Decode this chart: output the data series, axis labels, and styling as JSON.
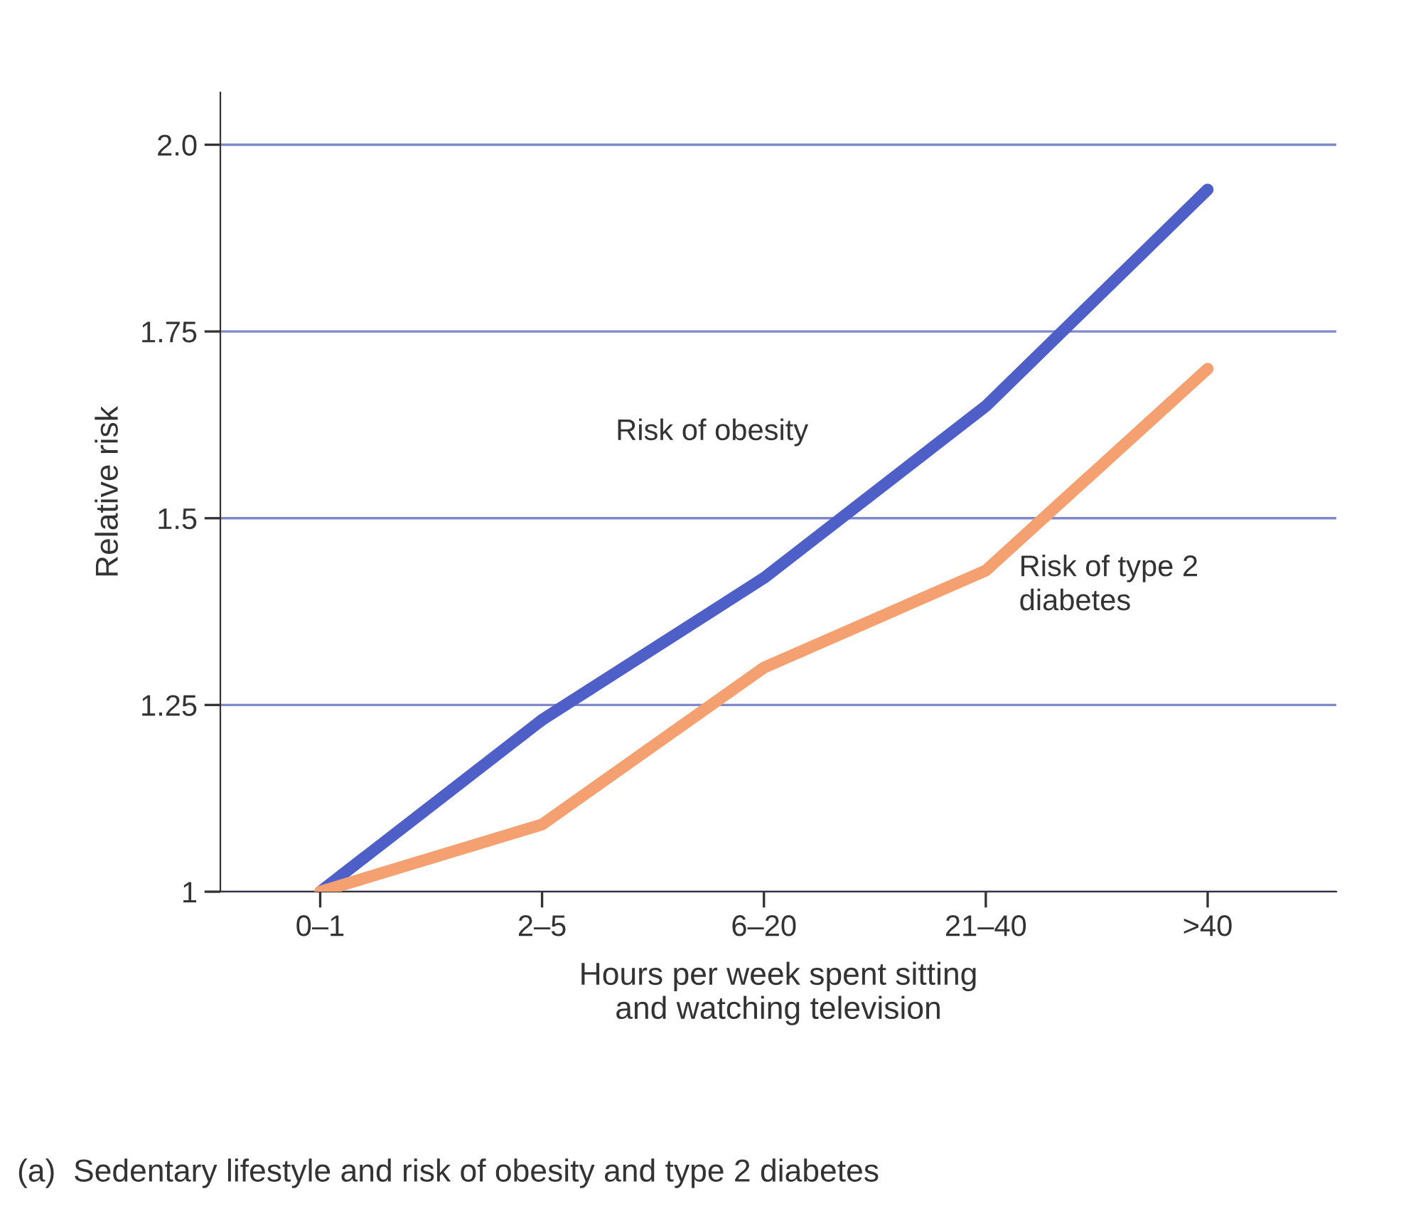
{
  "chart_data": {
    "type": "line",
    "xlabel": "Hours per week spent sitting\nand watching television",
    "ylabel": "Relative risk",
    "categories": [
      "0–1",
      "2–5",
      "6–20",
      "21–40",
      ">40"
    ],
    "series": [
      {
        "name": "Risk of obesity",
        "color": "#4f5fc8",
        "values": [
          1.0,
          1.23,
          1.42,
          1.65,
          1.94
        ]
      },
      {
        "name": "Risk of type 2\ndiabetes",
        "color": "#f5a070",
        "values": [
          1.0,
          1.09,
          1.3,
          1.43,
          1.7
        ]
      }
    ],
    "ylim": [
      1,
      2.07
    ],
    "yticks": [
      {
        "value": 1,
        "label": "1"
      },
      1.25,
      1.5,
      1.75,
      {
        "value": 2,
        "label": "2.0"
      }
    ],
    "grid": "y",
    "legend": false,
    "marker": "none",
    "line_style": "solid",
    "annotations": [
      "(a)  Sedentary lifestyle and risk of obesity and type 2 diabetes"
    ]
  }
}
